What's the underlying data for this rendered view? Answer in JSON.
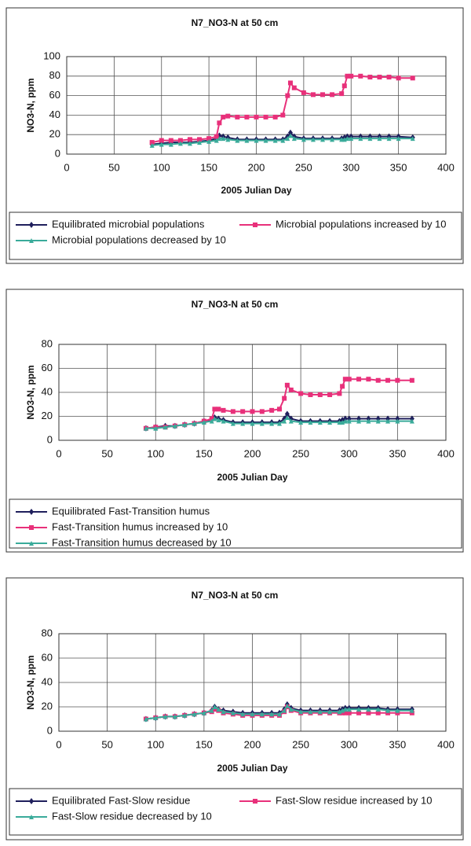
{
  "chart_data": [
    {
      "type": "line",
      "title": "N7_NO3-N at 50 cm",
      "x_label": "2005 Julian Day",
      "y_label": "NO3-N, ppm",
      "xlim": [
        0,
        400
      ],
      "xticks": [
        0,
        50,
        100,
        150,
        200,
        250,
        300,
        350,
        400
      ],
      "ylim": [
        0,
        100
      ],
      "yticks": [
        0,
        20,
        40,
        60,
        80,
        100
      ],
      "grid": true,
      "legend_columns": 2,
      "x": [
        90,
        100,
        110,
        120,
        130,
        140,
        150,
        158,
        161,
        165,
        170,
        180,
        190,
        200,
        210,
        220,
        228,
        233,
        236,
        240,
        250,
        260,
        270,
        280,
        290,
        293,
        296,
        300,
        310,
        320,
        330,
        340,
        350,
        365
      ],
      "series": [
        {
          "name": "Equilibrated microbial populations",
          "color": "#1f1f5c",
          "marker": "diamond",
          "values": [
            10,
            11,
            12,
            12,
            12,
            13,
            14,
            16,
            19,
            18,
            17,
            15,
            15,
            15,
            15,
            15,
            15,
            18,
            22,
            18,
            16,
            16,
            16,
            16,
            16,
            17,
            18,
            18,
            18,
            18,
            18,
            18,
            18,
            17
          ]
        },
        {
          "name": "Microbial populations increased by 10",
          "color": "#e8307a",
          "marker": "square",
          "values": [
            12,
            14,
            14,
            14,
            15,
            15,
            16,
            18,
            32,
            38,
            39,
            38,
            38,
            38,
            38,
            38,
            40,
            60,
            73,
            68,
            63,
            61,
            61,
            61,
            62,
            70,
            80,
            80,
            80,
            79,
            79,
            79,
            78,
            78
          ]
        },
        {
          "name": "Microbial populations decreased by 10",
          "color": "#3aab9a",
          "marker": "triangle",
          "values": [
            9,
            10,
            10,
            11,
            11,
            12,
            13,
            14,
            16,
            16,
            15,
            14,
            14,
            14,
            14,
            14,
            14,
            16,
            19,
            16,
            15,
            15,
            15,
            15,
            15,
            15,
            16,
            16,
            16,
            16,
            16,
            16,
            16,
            16
          ]
        }
      ]
    },
    {
      "type": "line",
      "title": "N7_NO3-N at 50 cm",
      "x_label": "2005 Julian Day",
      "y_label": "NO3-N, ppm",
      "xlim": [
        0,
        400
      ],
      "xticks": [
        0,
        50,
        100,
        150,
        200,
        250,
        300,
        350,
        400
      ],
      "ylim": [
        0,
        80
      ],
      "yticks": [
        0,
        20,
        40,
        60,
        80
      ],
      "grid": true,
      "legend_columns": 1,
      "x": [
        90,
        100,
        110,
        120,
        130,
        140,
        150,
        158,
        161,
        165,
        170,
        180,
        190,
        200,
        210,
        220,
        228,
        233,
        236,
        240,
        250,
        260,
        270,
        280,
        290,
        293,
        296,
        300,
        310,
        320,
        330,
        340,
        350,
        365
      ],
      "series": [
        {
          "name": "Equilibrated Fast-Transition humus",
          "color": "#1f1f5c",
          "marker": "diamond",
          "values": [
            10,
            11,
            12,
            12,
            13,
            14,
            16,
            17,
            19,
            18,
            17,
            15,
            15,
            15,
            15,
            15,
            15,
            18,
            22,
            18,
            16,
            16,
            16,
            16,
            16,
            17,
            18,
            18,
            18,
            18,
            18,
            18,
            18,
            18
          ]
        },
        {
          "name": "Fast-Transition humus increased by 10",
          "color": "#e8307a",
          "marker": "square",
          "values": [
            10,
            11,
            11,
            12,
            13,
            14,
            16,
            18,
            26,
            26,
            25,
            24,
            24,
            24,
            24,
            25,
            26,
            35,
            46,
            42,
            39,
            38,
            38,
            38,
            39,
            45,
            51,
            51,
            51,
            51,
            50,
            50,
            50,
            50
          ]
        },
        {
          "name": "Fast-Transition humus decreased by 10",
          "color": "#3aab9a",
          "marker": "triangle",
          "values": [
            10,
            10,
            11,
            12,
            13,
            14,
            15,
            16,
            18,
            17,
            16,
            14,
            14,
            14,
            14,
            14,
            14,
            16,
            19,
            16,
            15,
            15,
            15,
            15,
            15,
            15,
            16,
            16,
            16,
            16,
            16,
            16,
            16,
            16
          ]
        }
      ]
    },
    {
      "type": "line",
      "title": "N7_NO3-N at 50 cm",
      "x_label": "2005 Julian Day",
      "y_label": "NO3-N, ppm",
      "xlim": [
        0,
        400
      ],
      "xticks": [
        0,
        50,
        100,
        150,
        200,
        250,
        300,
        350,
        400
      ],
      "ylim": [
        0,
        80
      ],
      "yticks": [
        0,
        20,
        40,
        60,
        80
      ],
      "grid": true,
      "legend_columns": 2,
      "x": [
        90,
        100,
        110,
        120,
        130,
        140,
        150,
        158,
        161,
        165,
        170,
        180,
        190,
        200,
        210,
        220,
        228,
        233,
        236,
        240,
        250,
        260,
        270,
        280,
        290,
        293,
        296,
        300,
        310,
        320,
        330,
        340,
        350,
        365
      ],
      "series": [
        {
          "name": "Equilibrated Fast-Slow  residue",
          "color": "#1f1f5c",
          "marker": "diamond",
          "values": [
            10,
            11,
            12,
            12,
            13,
            14,
            15,
            17,
            20,
            18,
            17,
            16,
            15,
            15,
            15,
            15,
            15,
            18,
            22,
            19,
            17,
            17,
            17,
            17,
            17,
            18,
            19,
            19,
            19,
            19,
            19,
            18,
            18,
            18
          ]
        },
        {
          "name": "Fast-Slow  residue increased by 10",
          "color": "#e8307a",
          "marker": "square",
          "values": [
            10,
            11,
            12,
            12,
            13,
            14,
            15,
            16,
            18,
            17,
            15,
            14,
            13,
            13,
            13,
            13,
            13,
            16,
            20,
            17,
            15,
            15,
            15,
            15,
            15,
            15,
            15,
            15,
            15,
            15,
            15,
            15,
            15,
            15
          ]
        },
        {
          "name": "Fast-Slow  residue decreased by 10",
          "color": "#3aab9a",
          "marker": "triangle",
          "values": [
            10,
            11,
            12,
            12,
            13,
            14,
            15,
            17,
            20,
            18,
            16,
            15,
            14,
            14,
            14,
            14,
            14,
            17,
            21,
            18,
            16,
            16,
            16,
            16,
            16,
            17,
            18,
            18,
            18,
            18,
            18,
            17,
            17,
            17
          ]
        }
      ]
    }
  ]
}
